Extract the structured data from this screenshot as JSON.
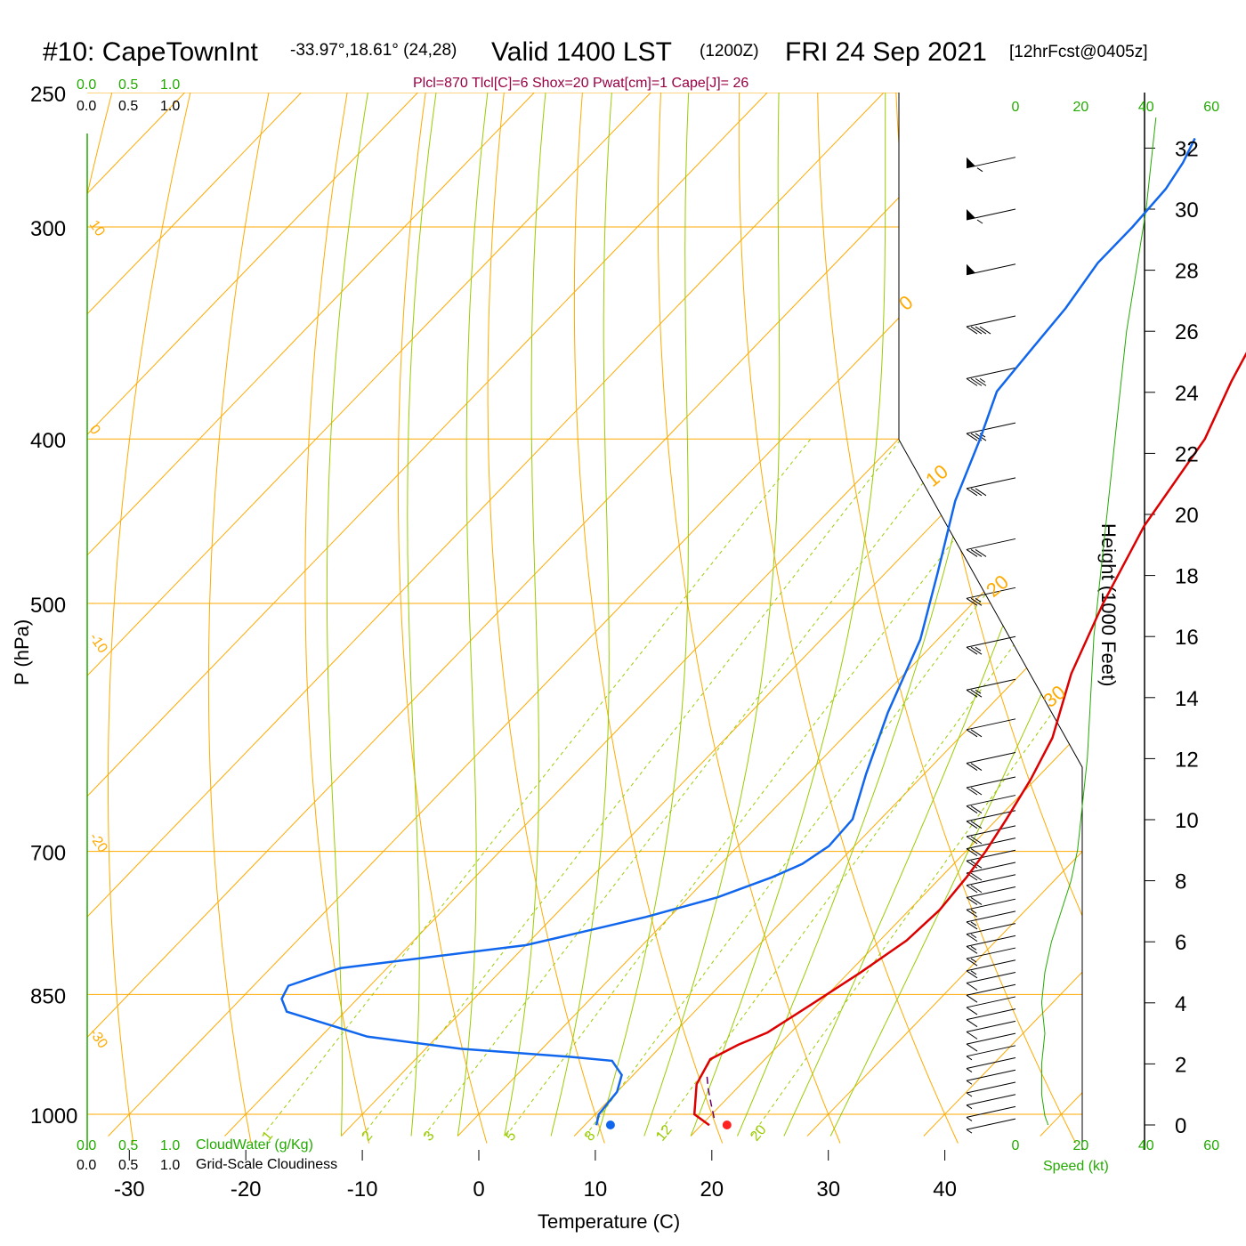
{
  "header": {
    "station": "#10: CapeTownInt",
    "coords": "-33.97°,18.61° (24,28)",
    "valid": "Valid 1400 LST",
    "utc": "(1200Z)",
    "date": "FRI 24 Sep 2021",
    "forecast": "[12hrFcst@0405z]",
    "subtitle": "Plcl=870 Tlcl[C]=6 Shox=20 Pwat[cm]=1 Cape[J]= 26"
  },
  "labels": {
    "cloudwater": "CloudWater (g/Kg)",
    "cloudiness": "Grid-Scale Cloudiness",
    "speed": "Speed (kt)",
    "cloud_ticks": [
      "0.0",
      "0.5",
      "1.0"
    ]
  },
  "colors": {
    "isotherm": "#ffaa00",
    "dry_adiabat": "#ffaa00",
    "moist_adiabat": "#99cc00",
    "mixing_ratio": "#99cc00",
    "temperature": "#dd0000",
    "dewpoint": "#1166ee",
    "parcel": "#660066",
    "speed": "#22aa00",
    "subtitle": "#990044"
  },
  "chart_data": {
    "type": "line",
    "title": "#10: CapeTownInt",
    "xlabel": "Temperature (C)",
    "ylabel": "P (hPa)",
    "y2label": "Height (1000 Feet)",
    "xlim": [
      -34,
      36
    ],
    "ylim": [
      1020,
      250
    ],
    "y_log": true,
    "x_ticks": [
      -30,
      -20,
      -10,
      0,
      10,
      20,
      30,
      40
    ],
    "p_ticks": [
      250,
      300,
      400,
      500,
      700,
      850,
      1000
    ],
    "height_ticks": [
      0,
      2,
      4,
      6,
      8,
      10,
      12,
      14,
      16,
      18,
      20,
      22,
      24,
      26,
      28,
      30,
      32
    ],
    "speed_ticks": [
      0,
      20,
      40,
      60
    ],
    "isotherm_labels": [
      {
        "t": 10,
        "text": "10"
      },
      {
        "t": 0,
        "text": "0"
      },
      {
        "t": -10,
        "text": "-10"
      },
      {
        "t": -20,
        "text": "-20"
      },
      {
        "t": -30,
        "text": "-30"
      }
    ],
    "isotherm_right_labels": [
      {
        "t": 0,
        "text": "0"
      },
      {
        "t": 10,
        "text": "10"
      },
      {
        "t": 20,
        "text": "20"
      },
      {
        "t": 30,
        "text": "30"
      }
    ],
    "mixing_ratio_labels": [
      "1",
      "2",
      "3",
      "5",
      "8",
      "12",
      "20"
    ],
    "mixing_ratios": [
      1,
      2,
      3,
      5,
      8,
      12,
      20
    ],
    "moist_adiabats_C": [
      -10,
      -4,
      0,
      4,
      8,
      12,
      16,
      20,
      24,
      28,
      32
    ],
    "series": [
      {
        "name": "Temperature",
        "color": "#dd0000",
        "points": [
          [
            20.7,
            1015
          ],
          [
            18.5,
            1000
          ],
          [
            16.2,
            960
          ],
          [
            15.3,
            928
          ],
          [
            16.5,
            910
          ],
          [
            18.0,
            895
          ],
          [
            19.5,
            860
          ],
          [
            21.0,
            825
          ],
          [
            22.3,
            790
          ],
          [
            22.6,
            758
          ],
          [
            22.2,
            725
          ],
          [
            21.7,
            700
          ],
          [
            20.8,
            670
          ],
          [
            19.6,
            635
          ],
          [
            18.0,
            600
          ],
          [
            14.3,
            550
          ],
          [
            11.2,
            500
          ],
          [
            8.3,
            450
          ],
          [
            6.3,
            400
          ],
          [
            3.8,
            370
          ],
          [
            1.5,
            340
          ],
          [
            -1.2,
            310
          ],
          [
            -3.8,
            285
          ],
          [
            -6.0,
            266
          ]
        ]
      },
      {
        "name": "Dewpoint",
        "color": "#1166ee",
        "points": [
          [
            11.0,
            1015
          ],
          [
            10.3,
            1000
          ],
          [
            10.0,
            970
          ],
          [
            9.0,
            948
          ],
          [
            7.0,
            930
          ],
          [
            3.0,
            925
          ],
          [
            -7.0,
            915
          ],
          [
            -16.0,
            900
          ],
          [
            -25.0,
            870
          ],
          [
            -26.5,
            855
          ],
          [
            -27.0,
            840
          ],
          [
            -24.0,
            820
          ],
          [
            -10.0,
            795
          ],
          [
            -6.0,
            780
          ],
          [
            -2.0,
            765
          ],
          [
            2.5,
            745
          ],
          [
            5.5,
            725
          ],
          [
            7.0,
            712
          ],
          [
            7.8,
            695
          ],
          [
            7.6,
            670
          ],
          [
            5.0,
            630
          ],
          [
            1.8,
            580
          ],
          [
            -1.5,
            525
          ],
          [
            -5.5,
            480
          ],
          [
            -10.0,
            435
          ],
          [
            -13.0,
            400
          ],
          [
            -15.5,
            375
          ],
          [
            -16.0,
            355
          ],
          [
            -16.5,
            335
          ],
          [
            -17.5,
            315
          ],
          [
            -17.5,
            300
          ],
          [
            -17.8,
            285
          ],
          [
            -18.5,
            275
          ],
          [
            -19.5,
            266
          ]
        ]
      },
      {
        "name": "Parcel",
        "color": "#660066",
        "dashed": true,
        "points": [
          [
            20.5,
            1005
          ],
          [
            19.0,
            985
          ],
          [
            17.5,
            965
          ],
          [
            16.1,
            945
          ]
        ]
      }
    ],
    "surface_points": [
      {
        "name": "surface temperature",
        "t": 21.3,
        "color": "#ff2222"
      },
      {
        "name": "surface dewpoint",
        "t": 11.3,
        "color": "#1166ee"
      }
    ],
    "speed_profile": [
      [
        10,
        0
      ],
      [
        9,
        0.3
      ],
      [
        8,
        1
      ],
      [
        8,
        2
      ],
      [
        9,
        3
      ],
      [
        8,
        4
      ],
      [
        9,
        5
      ],
      [
        11,
        6
      ],
      [
        14,
        7
      ],
      [
        17,
        8
      ],
      [
        19,
        9
      ],
      [
        20,
        10
      ],
      [
        22,
        12
      ],
      [
        23,
        14
      ],
      [
        24,
        16
      ],
      [
        26,
        18
      ],
      [
        28,
        20
      ],
      [
        30,
        22
      ],
      [
        32,
        24
      ],
      [
        34,
        26
      ],
      [
        37,
        28
      ],
      [
        40,
        30
      ],
      [
        42,
        32
      ],
      [
        43,
        33
      ]
    ],
    "wind_barbs": [
      {
        "h": 0.2,
        "kt": 8
      },
      {
        "h": 0.6,
        "kt": 8
      },
      {
        "h": 1.0,
        "kt": 8
      },
      {
        "h": 1.4,
        "kt": 8
      },
      {
        "h": 1.8,
        "kt": 9
      },
      {
        "h": 2.2,
        "kt": 9
      },
      {
        "h": 2.6,
        "kt": 9
      },
      {
        "h": 3.0,
        "kt": 10
      },
      {
        "h": 3.4,
        "kt": 10
      },
      {
        "h": 3.8,
        "kt": 10
      },
      {
        "h": 4.2,
        "kt": 12
      },
      {
        "h": 4.6,
        "kt": 12
      },
      {
        "h": 5.0,
        "kt": 14
      },
      {
        "h": 5.4,
        "kt": 15
      },
      {
        "h": 5.8,
        "kt": 15
      },
      {
        "h": 6.2,
        "kt": 17
      },
      {
        "h": 6.6,
        "kt": 18
      },
      {
        "h": 7.0,
        "kt": 18
      },
      {
        "h": 7.4,
        "kt": 19
      },
      {
        "h": 7.8,
        "kt": 20
      },
      {
        "h": 8.2,
        "kt": 20
      },
      {
        "h": 8.6,
        "kt": 20
      },
      {
        "h": 9.0,
        "kt": 21
      },
      {
        "h": 9.4,
        "kt": 21
      },
      {
        "h": 9.8,
        "kt": 22
      },
      {
        "h": 10.3,
        "kt": 22
      },
      {
        "h": 10.8,
        "kt": 22
      },
      {
        "h": 11.4,
        "kt": 23
      },
      {
        "h": 12.2,
        "kt": 23
      },
      {
        "h": 13.3,
        "kt": 24
      },
      {
        "h": 14.6,
        "kt": 25
      },
      {
        "h": 16.0,
        "kt": 27
      },
      {
        "h": 17.6,
        "kt": 29
      },
      {
        "h": 19.2,
        "kt": 31
      },
      {
        "h": 21.2,
        "kt": 33
      },
      {
        "h": 23.0,
        "kt": 35
      },
      {
        "h": 24.8,
        "kt": 38
      },
      {
        "h": 26.5,
        "kt": 42
      },
      {
        "h": 28.2,
        "kt": 52
      },
      {
        "h": 30.0,
        "kt": 55
      },
      {
        "h": 31.7,
        "kt": 57
      }
    ]
  }
}
